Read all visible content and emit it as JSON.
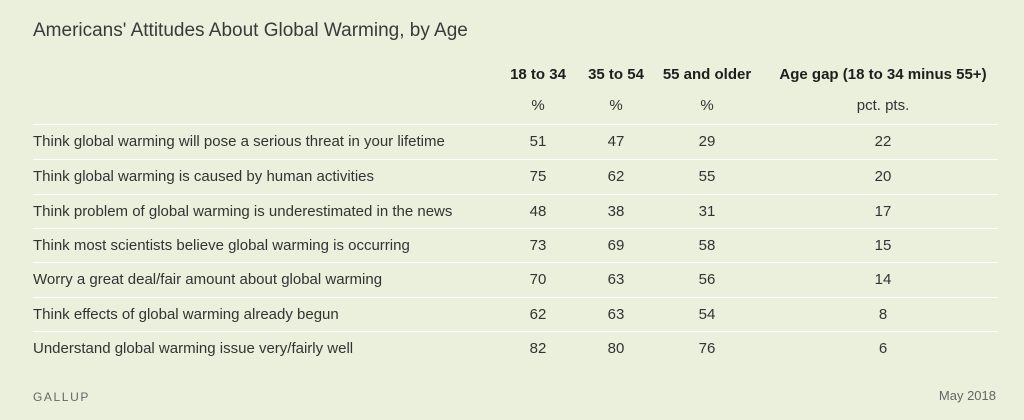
{
  "chart_data": {
    "type": "table",
    "title": "Americans' Attitudes About Global Warming, by Age",
    "columns": [
      {
        "name": "18 to 34",
        "unit": "%"
      },
      {
        "name": "35 to 54",
        "unit": "%"
      },
      {
        "name": "55 and older",
        "unit": "%"
      },
      {
        "name": "Age gap (18 to 34 minus 55+)",
        "unit": "pct. pts."
      }
    ],
    "rows": [
      {
        "label": "Think global warming will pose a serious threat in your lifetime",
        "values": [
          "51",
          "47",
          "29",
          "22"
        ]
      },
      {
        "label": "Think global warming is caused by human activities",
        "values": [
          "75",
          "62",
          "55",
          "20"
        ]
      },
      {
        "label": "Think problem of global warming is underestimated in the news",
        "values": [
          "48",
          "38",
          "31",
          "17"
        ]
      },
      {
        "label": "Think most scientists believe global warming is occurring",
        "values": [
          "73",
          "69",
          "58",
          "15"
        ]
      },
      {
        "label": "Worry a great deal/fair amount about global warming",
        "values": [
          "70",
          "63",
          "56",
          "14"
        ]
      },
      {
        "label": "Think effects of global warming already begun",
        "values": [
          "62",
          "63",
          "54",
          "8"
        ]
      },
      {
        "label": "Understand global warming issue very/fairly well",
        "values": [
          "82",
          "80",
          "76",
          "6"
        ]
      }
    ]
  },
  "footer": {
    "brand": "GALLUP",
    "date": "May 2018"
  },
  "colors": {
    "background": "#eaf0dc",
    "rule": "#ffffff",
    "text": "#333333"
  }
}
